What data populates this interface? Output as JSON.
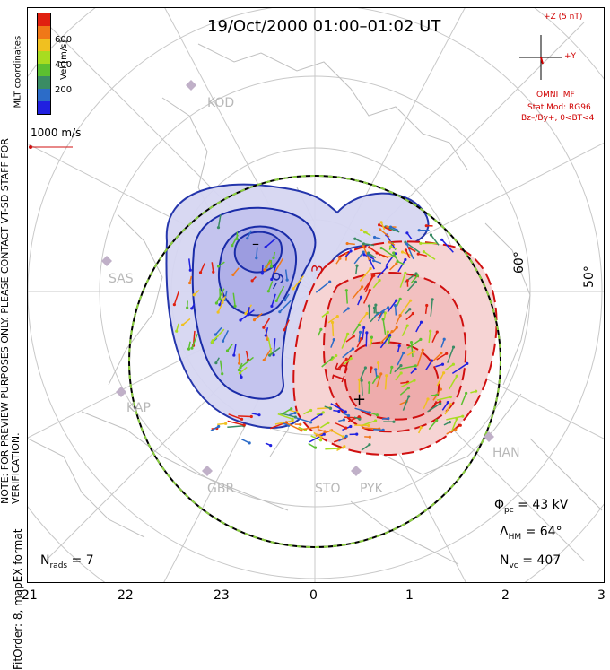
{
  "title": "19/Oct/2000 01:00–01:02 UT",
  "side_note": "NOTE: FOR PREVIEW PURPOSES ONLY. PLEASE CONTACT VT-SD STAFF FOR VERIFICATION.",
  "fit_order": "FitOrder: 8, mapEX format",
  "coord_label": "MLT coordinates",
  "colorbar": {
    "label": "Vel [m/s]",
    "ticks": [
      "600",
      "400",
      "200"
    ],
    "colors": [
      "#2020e0",
      "#2c6cc8",
      "#3a8c64",
      "#5cc030",
      "#a8dc20",
      "#f0c020",
      "#f07818",
      "#e02010"
    ]
  },
  "scale_label": "1000 m/s",
  "imf": {
    "magnitude": "+Z (5 nT)",
    "y_label": "+Y",
    "source": "OMNI IMF",
    "model": "Stat Mod: RG96",
    "condition": "Bz–/By+, 0<BT<4"
  },
  "stats": {
    "phi_pc": "43 kV",
    "lambda_hm": "64°",
    "n_vc": "407",
    "n_rads": "7"
  },
  "mlt_ticks": [
    "21",
    "22",
    "23",
    "0",
    "1",
    "2",
    "3"
  ],
  "lat_labels": [
    "60°",
    "50°"
  ],
  "stations": [
    "KOD",
    "SAS",
    "KAP",
    "GBR",
    "STO",
    "PYK",
    "HAN"
  ],
  "contours": {
    "negative_label": "–9",
    "positive_label": "15",
    "positive_label2": "3",
    "min_marker": "–",
    "max_marker": "+"
  }
}
